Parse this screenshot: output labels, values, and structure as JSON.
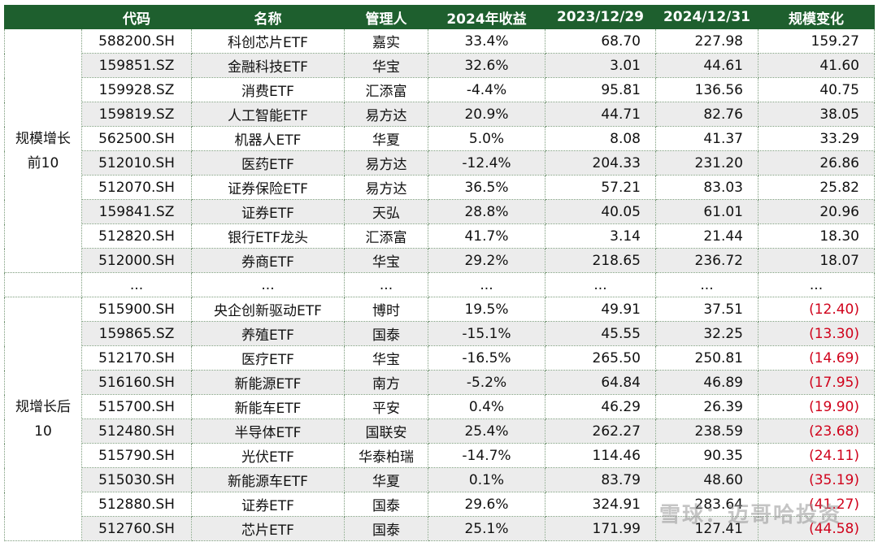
{
  "headers": [
    "",
    "代码",
    "名称",
    "管理人",
    "2024年收益",
    "2023/12/29",
    "2024/12/31",
    "规模变化"
  ],
  "group_top": "规模增长前10",
  "group_bottom": "规增长后10",
  "top_rows": [
    {
      "code": "588200.SH",
      "name": "科创芯片ETF",
      "mgr": "嘉实",
      "ret": "33.4%",
      "s2023": "68.70",
      "s2024": "227.98",
      "chg": "159.27"
    },
    {
      "code": "159851.SZ",
      "name": "金融科技ETF",
      "mgr": "华宝",
      "ret": "32.6%",
      "s2023": "3.01",
      "s2024": "44.61",
      "chg": "41.60"
    },
    {
      "code": "159928.SZ",
      "name": "消费ETF",
      "mgr": "汇添富",
      "ret": "-4.4%",
      "s2023": "95.81",
      "s2024": "136.56",
      "chg": "40.75"
    },
    {
      "code": "159819.SZ",
      "name": "人工智能ETF",
      "mgr": "易方达",
      "ret": "20.9%",
      "s2023": "44.71",
      "s2024": "82.76",
      "chg": "38.05"
    },
    {
      "code": "562500.SH",
      "name": "机器人ETF",
      "mgr": "华夏",
      "ret": "5.0%",
      "s2023": "8.08",
      "s2024": "41.37",
      "chg": "33.29"
    },
    {
      "code": "512010.SH",
      "name": "医药ETF",
      "mgr": "易方达",
      "ret": "-12.4%",
      "s2023": "204.33",
      "s2024": "231.20",
      "chg": "26.86"
    },
    {
      "code": "512070.SH",
      "name": "证券保险ETF",
      "mgr": "易方达",
      "ret": "36.5%",
      "s2023": "57.21",
      "s2024": "83.03",
      "chg": "25.82"
    },
    {
      "code": "159841.SZ",
      "name": "证券ETF",
      "mgr": "天弘",
      "ret": "28.8%",
      "s2023": "40.05",
      "s2024": "61.01",
      "chg": "20.96"
    },
    {
      "code": "512820.SH",
      "name": "银行ETF龙头",
      "mgr": "汇添富",
      "ret": "41.7%",
      "s2023": "3.14",
      "s2024": "21.44",
      "chg": "18.30"
    },
    {
      "code": "512000.SH",
      "name": "券商ETF",
      "mgr": "华宝",
      "ret": "29.2%",
      "s2023": "218.65",
      "s2024": "236.72",
      "chg": "18.07"
    }
  ],
  "ellipsis": "...",
  "bottom_rows": [
    {
      "code": "515900.SH",
      "name": "央企创新驱动ETF",
      "mgr": "博时",
      "ret": "19.5%",
      "s2023": "49.91",
      "s2024": "37.51",
      "chg": "(12.40)"
    },
    {
      "code": "159865.SZ",
      "name": "养殖ETF",
      "mgr": "国泰",
      "ret": "-15.1%",
      "s2023": "45.55",
      "s2024": "32.25",
      "chg": "(13.30)"
    },
    {
      "code": "512170.SH",
      "name": "医疗ETF",
      "mgr": "华宝",
      "ret": "-16.5%",
      "s2023": "265.50",
      "s2024": "250.81",
      "chg": "(14.69)"
    },
    {
      "code": "516160.SH",
      "name": "新能源ETF",
      "mgr": "南方",
      "ret": "-5.2%",
      "s2023": "64.84",
      "s2024": "46.89",
      "chg": "(17.95)"
    },
    {
      "code": "515700.SH",
      "name": "新能车ETF",
      "mgr": "平安",
      "ret": "0.4%",
      "s2023": "46.29",
      "s2024": "26.39",
      "chg": "(19.90)"
    },
    {
      "code": "512480.SH",
      "name": "半导体ETF",
      "mgr": "国联安",
      "ret": "25.4%",
      "s2023": "262.27",
      "s2024": "238.59",
      "chg": "(23.68)"
    },
    {
      "code": "515790.SH",
      "name": "光伏ETF",
      "mgr": "华泰柏瑞",
      "ret": "-14.7%",
      "s2023": "114.46",
      "s2024": "90.35",
      "chg": "(24.11)"
    },
    {
      "code": "515030.SH",
      "name": "新能源车ETF",
      "mgr": "华夏",
      "ret": "0.1%",
      "s2023": "83.79",
      "s2024": "48.60",
      "chg": "(35.19)"
    },
    {
      "code": "512880.SH",
      "name": "证券ETF",
      "mgr": "国泰",
      "ret": "29.6%",
      "s2023": "324.91",
      "s2024": "283.64",
      "chg": "(41.27)"
    },
    {
      "code": "512760.SH",
      "name": "芯片ETF",
      "mgr": "国泰",
      "ret": "25.1%",
      "s2023": "171.99",
      "s2024": "127.41",
      "chg": "(44.58)"
    }
  ],
  "watermark": "雪球：迈哥哈投资",
  "colors": {
    "header_bg": "#1e5f2e",
    "negative": "#d0021b",
    "row_alt": "#ececec"
  }
}
